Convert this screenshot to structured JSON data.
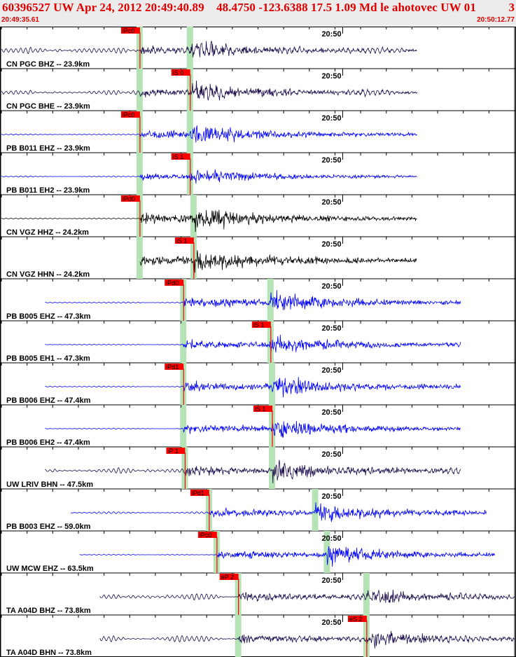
{
  "header": {
    "title": "60396527 UW Apr 24, 2012 20:49:40.89    48.4750 -123.6388 17.5 1.09 Md le ahotovec UW 01",
    "title_right": "3",
    "start_time": "20:49:35.61",
    "end_time": "20:50:12.77"
  },
  "chart_data": {
    "type": "seismogram",
    "time_range": [
      "20:49:35.61",
      "20:50:12.77"
    ],
    "time_tick": "20:50",
    "colors": {
      "short_period": "#0000ff",
      "broadband": "#1a0a4a",
      "strong_motion": "#000000",
      "pick": "#ff0000",
      "window": "#b6e3b6"
    },
    "traces": [
      {
        "label": "CN PGC BHZ -- 23.9km",
        "color": "broadband",
        "pick": "iPc0",
        "p_time": 0.27,
        "s_time": 0.368,
        "pick_time": 0.27,
        "pick_flag": 0.27,
        "start": 0.0,
        "end": 0.81,
        "noise": 0.13,
        "amp": 0.32
      },
      {
        "label": "CN PGC BHE -- 23.9km",
        "color": "broadband",
        "pick": "iS 0",
        "p_time": 0.27,
        "s_time": 0.368,
        "pick_time": 0.368,
        "start": 0.0,
        "end": 0.81,
        "noise": 0.12,
        "amp": 0.35
      },
      {
        "label": "PB B011 EHZ -- 23.9km",
        "color": "short_period",
        "pick": "iPc0",
        "p_time": 0.27,
        "s_time": 0.368,
        "pick_time": 0.27,
        "start": 0.0,
        "end": 0.81,
        "noise": 0.03,
        "amp": 0.4
      },
      {
        "label": "PB B011 EH2 -- 23.9km",
        "color": "short_period",
        "pick": "iS 1",
        "p_time": 0.27,
        "s_time": 0.368,
        "pick_time": 0.368,
        "start": 0.0,
        "end": 0.81,
        "noise": 0.03,
        "amp": 0.3
      },
      {
        "label": "CN VGZ HHZ -- 24.2km",
        "color": "strong_motion",
        "pick": "iPd0",
        "p_time": 0.27,
        "s_time": 0.375,
        "pick_time": 0.27,
        "start": 0.0,
        "end": 0.81,
        "noise": 0.03,
        "amp": 0.45
      },
      {
        "label": "CN VGZ HHN -- 24.2km",
        "color": "strong_motion",
        "pick": "iS 1",
        "p_time": 0.27,
        "s_time": 0.375,
        "pick_time": 0.375,
        "start": 0.27,
        "end": 0.81,
        "noise": 0.02,
        "amp": 0.5
      },
      {
        "label": "PB B005 EHZ -- 47.3km",
        "color": "short_period",
        "pick": "iPd0",
        "p_time": 0.355,
        "s_time": 0.525,
        "pick_time": 0.355,
        "start": 0.085,
        "end": 0.895,
        "noise": 0.04,
        "amp": 0.45
      },
      {
        "label": "PB B005 EH1 -- 47.3km",
        "color": "short_period",
        "pick": "iS 1",
        "p_time": 0.355,
        "s_time": 0.525,
        "pick_time": 0.525,
        "start": 0.085,
        "end": 0.895,
        "noise": 0.03,
        "amp": 0.4
      },
      {
        "label": "PB B006 EHZ -- 47.4km",
        "color": "short_period",
        "pick": "iPd1",
        "p_time": 0.355,
        "s_time": 0.528,
        "pick_time": 0.355,
        "start": 0.085,
        "end": 0.895,
        "noise": 0.04,
        "amp": 0.45
      },
      {
        "label": "PB B006 EH2 -- 47.4km",
        "color": "short_period",
        "pick": "iS 1",
        "p_time": 0.355,
        "s_time": 0.528,
        "pick_time": 0.528,
        "start": 0.085,
        "end": 0.895,
        "noise": 0.03,
        "amp": 0.4
      },
      {
        "label": "UW LRIV BHN -- 47.5km",
        "color": "broadband",
        "pick": "iP 1",
        "p_time": 0.358,
        "s_time": 0.528,
        "pick_time": 0.358,
        "start": 0.085,
        "end": 0.895,
        "noise": 0.12,
        "amp": 0.4
      },
      {
        "label": "PB B003 EHZ -- 59.0km",
        "color": "short_period",
        "pick": "iPd1",
        "p_time": 0.405,
        "s_time": 0.612,
        "pick_time": 0.405,
        "start": 0.135,
        "end": 0.945,
        "noise": 0.05,
        "amp": 0.42
      },
      {
        "label": "UW MCW EHZ -- 63.5km",
        "color": "short_period",
        "pick": "iPc0",
        "p_time": 0.42,
        "s_time": 0.635,
        "pick_time": 0.42,
        "start": 0.152,
        "end": 0.962,
        "noise": 0.02,
        "amp": 0.4
      },
      {
        "label": "TA A04D BHZ -- 73.8km",
        "color": "broadband",
        "pick": "eP 2",
        "p_time": 0.462,
        "s_time": 0.712,
        "pick_time": 0.462,
        "start": 0.192,
        "end": 1.0,
        "noise": 0.12,
        "amp": 0.35
      },
      {
        "label": "TA A04D BHN -- 73.8km",
        "color": "broadband",
        "pick": "eS 2",
        "p_time": 0.462,
        "s_time": 0.712,
        "pick_time": 0.712,
        "start": 0.192,
        "end": 1.0,
        "noise": 0.12,
        "amp": 0.38
      }
    ]
  }
}
